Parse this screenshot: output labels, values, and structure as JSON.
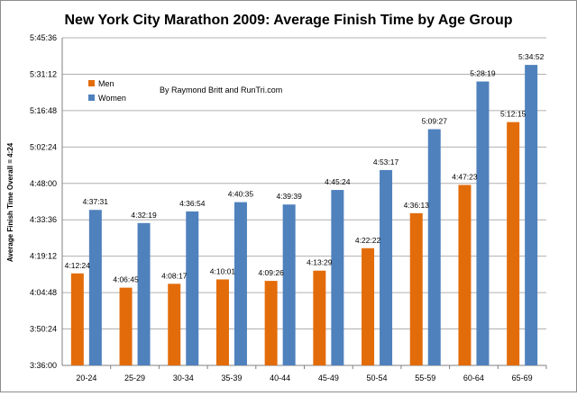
{
  "chart_data": {
    "type": "bar",
    "title": "New York City Marathon 2009: Average Finish Time by Age Group",
    "ylabel": "Average Finish Time Overall = 4:24",
    "xlabel": "",
    "annotation": "By Raymond Britt and RunTri.com",
    "categories": [
      "20-24",
      "25-29",
      "30-34",
      "35-39",
      "40-44",
      "45-49",
      "50-54",
      "55-59",
      "60-64",
      "65-69"
    ],
    "yticks": [
      "3:36:00",
      "3:50:24",
      "4:04:48",
      "4:19:12",
      "4:33:36",
      "4:48:00",
      "5:02:24",
      "5:16:48",
      "5:31:12",
      "5:45:36"
    ],
    "ylim": [
      "3:36:00",
      "5:45:36"
    ],
    "grid": true,
    "legend_position": "top-left",
    "colors": {
      "Men": "#e36c0a",
      "Women": "#4f81bd"
    },
    "series": [
      {
        "name": "Men",
        "values": [
          "4:12:24",
          "4:06:45",
          "4:08:17",
          "4:10:01",
          "4:09:26",
          "4:13:29",
          "4:22:22",
          "4:36:13",
          "4:47:23",
          "5:12:15"
        ]
      },
      {
        "name": "Women",
        "values": [
          "4:37:31",
          "4:32:19",
          "4:36:54",
          "4:40:35",
          "4:39:39",
          "4:45:24",
          "4:53:17",
          "5:09:27",
          "5:28:19",
          "5:34:52"
        ]
      }
    ]
  }
}
